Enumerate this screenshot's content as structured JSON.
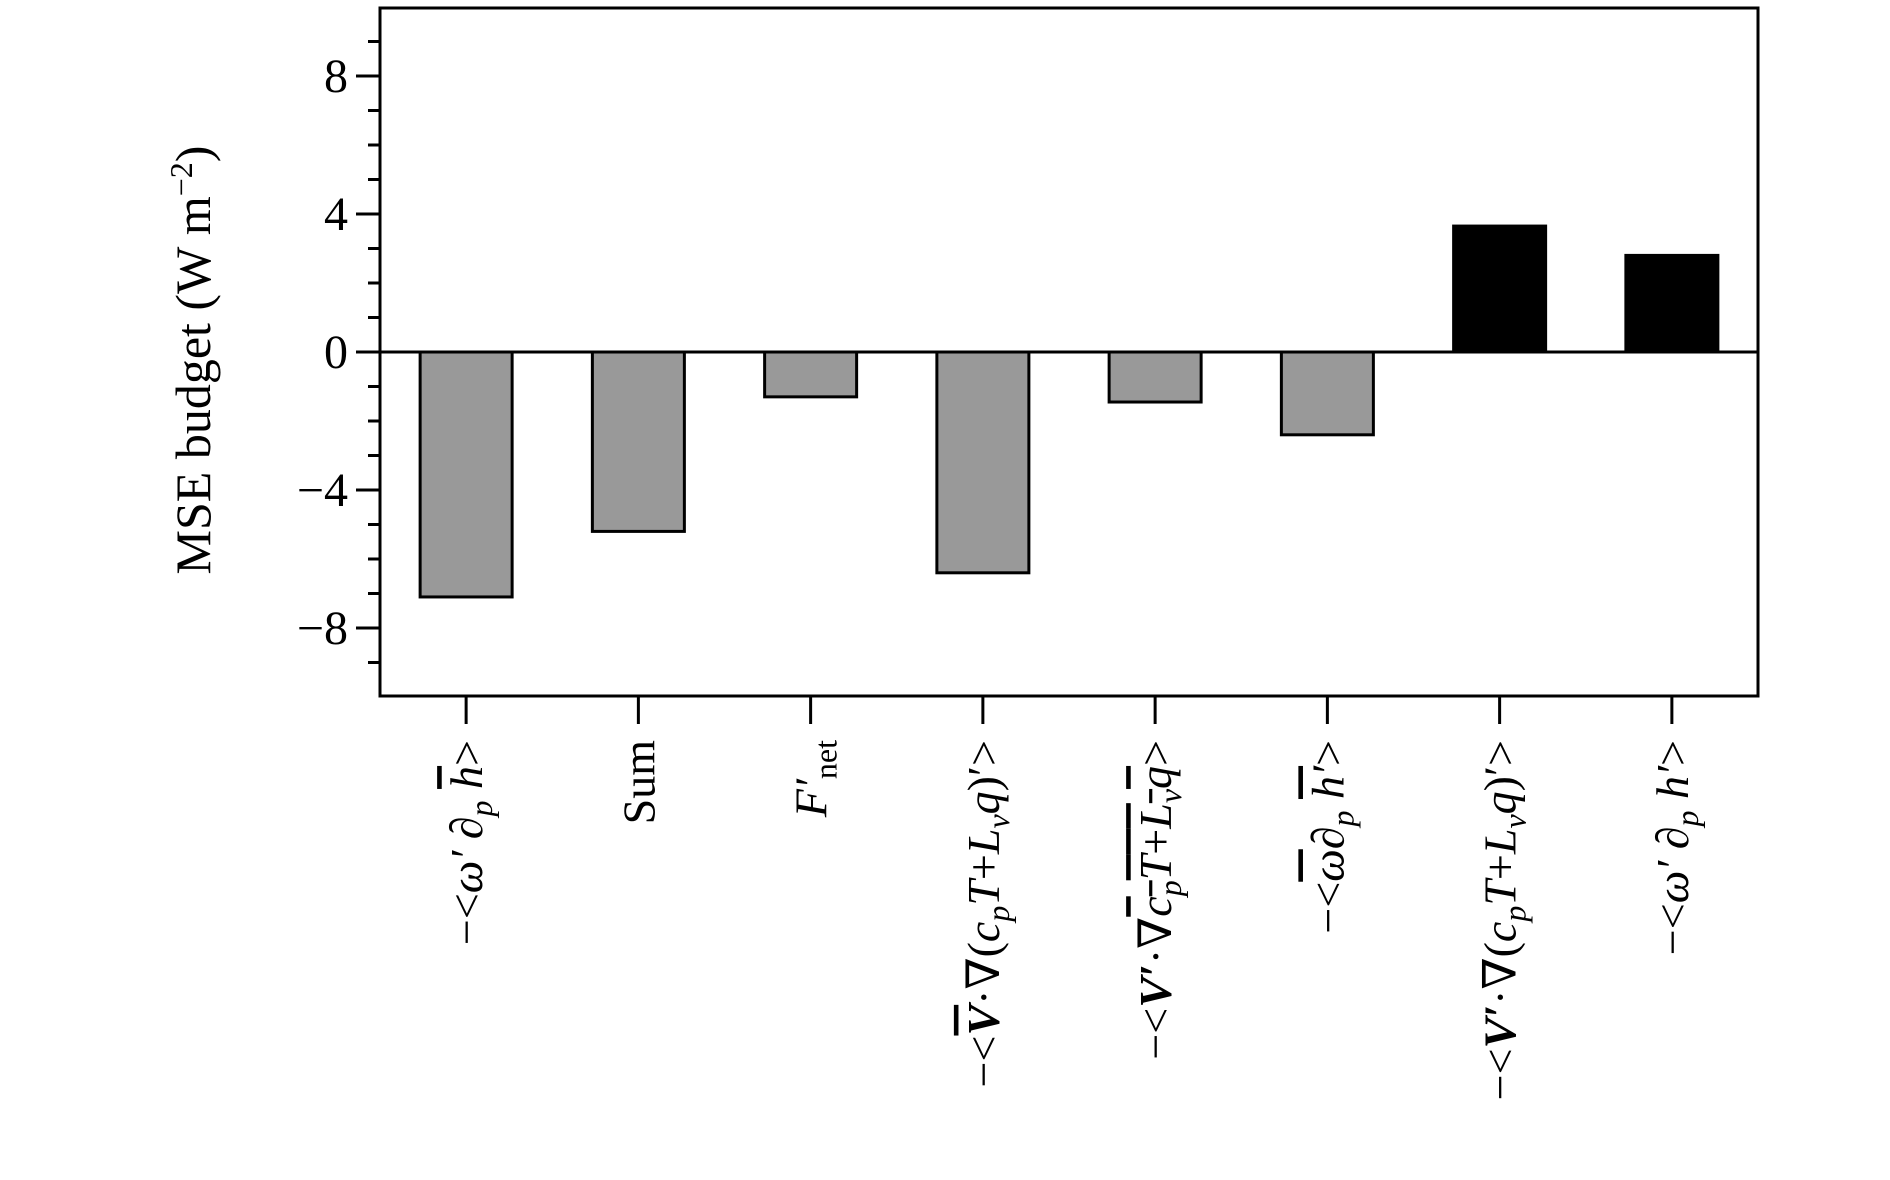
{
  "chart_data": {
    "type": "bar",
    "ylabel": "MSE budget (W m−2)",
    "ylabel_unit_exponent": "−2",
    "ylim": [
      -10,
      10
    ],
    "yticks": [
      -8,
      -4,
      0,
      4,
      8
    ],
    "ytick_labels": [
      "−8",
      "−4",
      "0",
      "4",
      "8"
    ],
    "minor_tick_step": 1,
    "grid": false,
    "legend": "none",
    "categories": [
      "−<ω′ ∂p h̅>",
      "Sum",
      "F′net",
      "−<V̅·∇(cpT+Lvq)′>",
      "−<V′·∇cpT+Lvq̅>",
      "−<ω̅∂p h′>",
      "−<V′·∇(cpT+Lvq)′>",
      "−<ω′ ∂p h′>"
    ],
    "values": [
      -7.1,
      -5.2,
      -1.3,
      -6.4,
      -1.45,
      -2.4,
      3.65,
      2.8
    ],
    "colors": [
      "#999999",
      "#999999",
      "#999999",
      "#999999",
      "#999999",
      "#999999",
      "#000000",
      "#000000"
    ]
  }
}
